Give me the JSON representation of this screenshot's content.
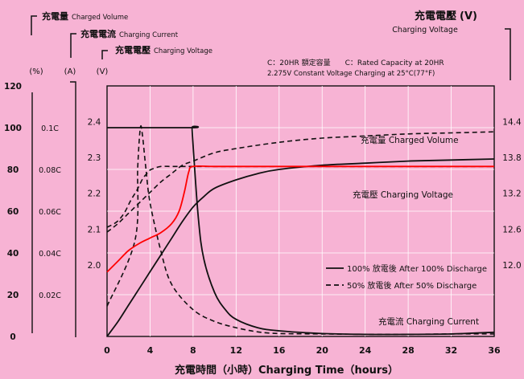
{
  "chart_data": {
    "type": "line",
    "title_cn": "充電電壓",
    "title_unit": "(V)",
    "title_en": "Charging Voltage",
    "header_legend": [
      {
        "cn": "充電量",
        "en": "Charged Volume"
      },
      {
        "cn": "充電電流",
        "en": "Charging Current"
      },
      {
        "cn": "充電電壓",
        "en": "Charging Voltage"
      }
    ],
    "axis_units": {
      "volume": "(%)",
      "current": "(A)",
      "voltage": "(V)"
    },
    "note_line1": "C：20HR 額定容量　　C：Rated Capacity at 20HR",
    "note_line2": "2.275V Constant Voltage Charging at 25°C(77°F)",
    "x_axis": {
      "label": "充電時間（小時）Charging Time（hours）",
      "range": [
        0,
        36
      ],
      "ticks": [
        "0",
        "4",
        "8",
        "12",
        "16",
        "20",
        "24",
        "28",
        "32",
        "36"
      ]
    },
    "volume_axis": {
      "range": [
        0,
        120
      ],
      "ticks": [
        "0",
        "20",
        "40",
        "60",
        "80",
        "100",
        "120"
      ]
    },
    "current_axis": {
      "ticks": [
        "0.02C",
        "0.04C",
        "0.06C",
        "0.08C",
        "0.1C"
      ]
    },
    "cell_voltage_axis": {
      "range": [
        1.8,
        2.5
      ],
      "ticks": [
        "2.0",
        "2.1",
        "2.2",
        "2.3",
        "2.4"
      ]
    },
    "battery_voltage_axis": {
      "ticks": [
        "12.0",
        "12.6",
        "13.2",
        "13.8",
        "14.4"
      ]
    },
    "curve_labels": {
      "volume": "充電量 Charged Volume",
      "voltage": "充電壓 Charging Voltage",
      "current": "充電流 Charging Current"
    },
    "legend": [
      {
        "style": "solid",
        "label": "100% 放電後 After 100% Discharge"
      },
      {
        "style": "dashed",
        "label": "50% 放電後 After 50% Discharge"
      }
    ],
    "colors": {
      "background": "#f7b3d4",
      "grid": "#ffffff",
      "ink": "#111111",
      "voltage_100": "#ff0000"
    },
    "series": {
      "volume_100": {
        "x": [
          0,
          1,
          2,
          3,
          4,
          5,
          6,
          7,
          8,
          9,
          10,
          12,
          14,
          16,
          20,
          24,
          28,
          32,
          36
        ],
        "y": [
          0,
          7,
          15,
          23,
          31,
          39,
          47,
          55,
          62,
          67,
          71,
          75,
          78,
          80,
          82,
          83,
          84,
          84.5,
          85
        ]
      },
      "volume_50": {
        "x": [
          0,
          1,
          2,
          3,
          4,
          5,
          6,
          7,
          8,
          10,
          12,
          16,
          20,
          24,
          28,
          32,
          36
        ],
        "y": [
          50,
          54,
          59,
          64,
          69,
          74,
          78,
          82,
          84,
          88,
          90,
          93,
          95,
          96,
          97,
          97.5,
          98
        ]
      },
      "current_100": {
        "x": [
          0,
          7.9,
          7.9,
          8,
          8.5,
          9,
          10,
          11,
          12,
          14,
          16,
          20,
          24,
          28,
          32,
          36
        ],
        "y": [
          0.1,
          0.1,
          0.1,
          0.0915,
          0.056,
          0.037,
          0.021,
          0.0128,
          0.0082,
          0.0042,
          0.0027,
          0.0014,
          0.001,
          0.001,
          0.0012,
          0.002
        ]
      },
      "current_50": {
        "x": [
          0,
          2.6,
          2.85,
          3.1,
          3.3,
          3.6,
          4,
          5,
          6,
          8,
          10,
          12,
          14,
          16,
          20,
          24,
          28,
          32,
          36
        ],
        "y": [
          0.0145,
          0.046,
          0.081,
          0.1,
          0.096,
          0.081,
          0.064,
          0.041,
          0.025,
          0.0128,
          0.0072,
          0.0042,
          0.0022,
          0.0014,
          0.0012,
          0.001,
          0.001,
          0.0012,
          0.0012
        ]
      },
      "voltage_100": {
        "x": [
          0,
          1,
          2,
          3,
          4,
          5,
          6,
          6.7,
          7.2,
          7.6,
          8,
          10,
          14,
          20,
          28,
          36
        ],
        "y": [
          1.98,
          2.01,
          2.04,
          2.06,
          2.075,
          2.09,
          2.115,
          2.15,
          2.205,
          2.26,
          2.275,
          2.275,
          2.275,
          2.275,
          2.275,
          2.275
        ]
      },
      "voltage_50": {
        "x": [
          0,
          0.9,
          1.6,
          2.2,
          2.8,
          3.3,
          3.7,
          4,
          4.4,
          5,
          6,
          7,
          8,
          10,
          14,
          20,
          28,
          36
        ],
        "y": [
          2.105,
          2.12,
          2.145,
          2.18,
          2.21,
          2.24,
          2.255,
          2.265,
          2.27,
          2.275,
          2.275,
          2.275,
          2.275,
          2.275,
          2.275,
          2.275,
          2.275,
          2.275
        ]
      }
    }
  }
}
